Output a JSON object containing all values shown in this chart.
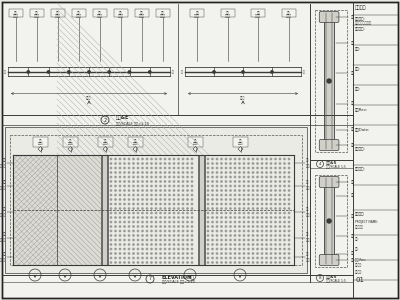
{
  "bg_color": "#e8e8e4",
  "paper_color": "#f2f2ee",
  "line_color": "#3a3a3a",
  "dashed_color": "#555555",
  "text_color": "#2a2a2a",
  "hatch_line": "#aaaaaa",
  "mesh_dot": "#999999",
  "fill_light": "#ebebE6",
  "fill_post": "#d0d0c8",
  "fill_wood": "#dcdcd4"
}
